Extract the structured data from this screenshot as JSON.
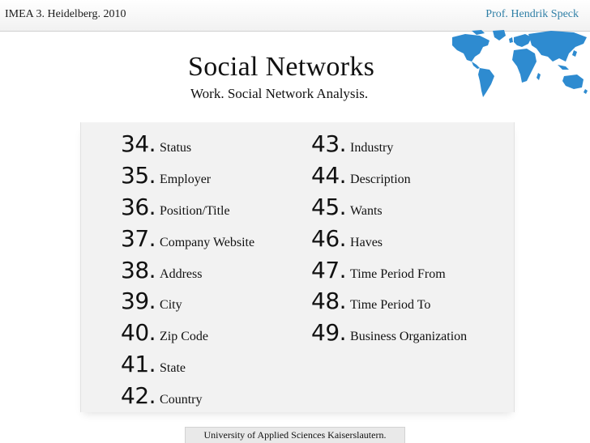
{
  "header": {
    "event": "IMEA 3. Heidelberg. 2010",
    "author": "Prof. Hendrik Speck"
  },
  "slide": {
    "title": "Social Networks",
    "subtitle": "Work. Social Network Analysis."
  },
  "items_left": [
    {
      "num": "34.",
      "label": "Status"
    },
    {
      "num": "35.",
      "label": "Employer"
    },
    {
      "num": "36.",
      "label": "Position/Title"
    },
    {
      "num": "37.",
      "label": "Company Website"
    },
    {
      "num": "38.",
      "label": "Address"
    },
    {
      "num": "39.",
      "label": "City"
    },
    {
      "num": "40.",
      "label": "Zip Code"
    },
    {
      "num": "41.",
      "label": "State"
    },
    {
      "num": "42.",
      "label": "Country"
    }
  ],
  "items_right": [
    {
      "num": "43.",
      "label": "Industry"
    },
    {
      "num": "44.",
      "label": "Description"
    },
    {
      "num": "45.",
      "label": "Wants"
    },
    {
      "num": "46.",
      "label": "Haves"
    },
    {
      "num": "47.",
      "label": "Time Period From"
    },
    {
      "num": "48.",
      "label": "Time Period To"
    },
    {
      "num": "49.",
      "label": "Business Organization"
    }
  ],
  "footer": {
    "text": "University of Applied Sciences Kaiserslautern."
  },
  "colors": {
    "author": "#2f7fa6",
    "map": "#2e8bd0"
  },
  "icons": {
    "map": "world-map-icon"
  }
}
